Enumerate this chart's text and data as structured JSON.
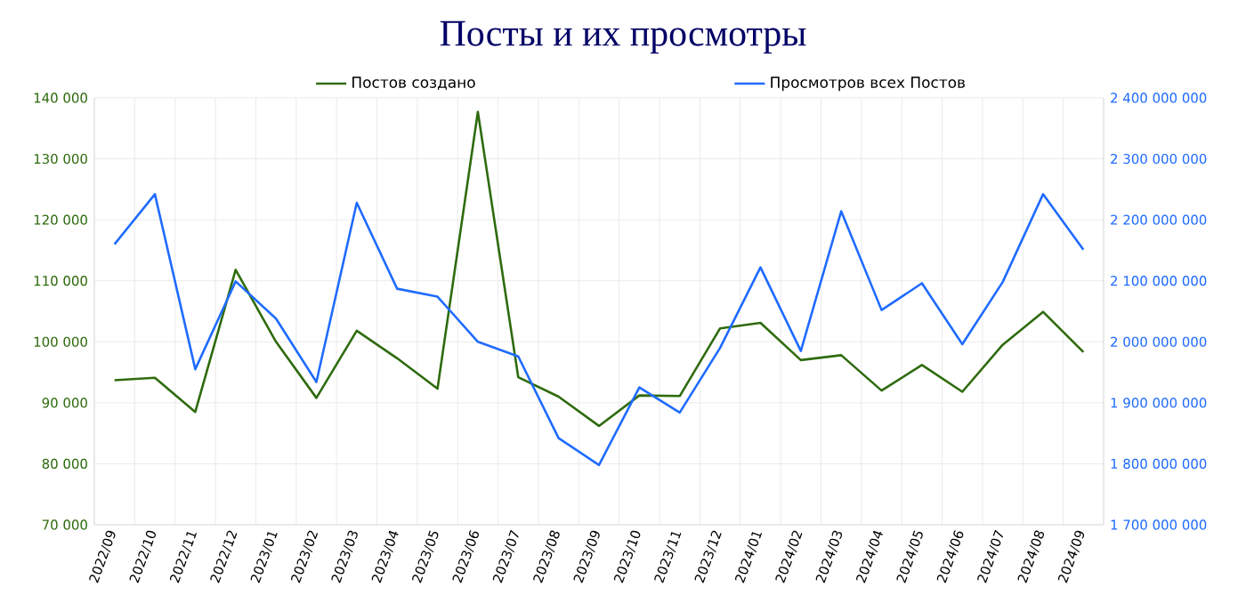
{
  "chart_data": {
    "type": "line",
    "title": "Посты и их просмотры",
    "categories": [
      "2022/09",
      "2022/10",
      "2022/11",
      "2022/12",
      "2023/01",
      "2023/02",
      "2023/03",
      "2023/04",
      "2023/05",
      "2023/06",
      "2023/07",
      "2023/08",
      "2023/09",
      "2023/10",
      "2023/11",
      "2023/12",
      "2024/01",
      "2024/02",
      "2024/03",
      "2024/04",
      "2024/05",
      "2024/06",
      "2024/07",
      "2024/08",
      "2024/09"
    ],
    "series": [
      {
        "name": "Постов создано",
        "color": "#2e6b0e",
        "values": [
          93700,
          94100,
          88500,
          111800,
          100000,
          90800,
          101800,
          97300,
          92300,
          137700,
          94200,
          91000,
          86200,
          91200,
          91100,
          102200,
          103100,
          97000,
          97800,
          92000,
          96200,
          91800,
          99500,
          104900,
          98300
        ]
      },
      {
        "name": "Просмотров всех Постов",
        "color": "#1f6bff",
        "axis": "y2",
        "values": [
          2160000000,
          2242000000,
          1955000000,
          2099000000,
          2038000000,
          1934000000,
          2228000000,
          2087000000,
          2074000000,
          2000000000,
          1976000000,
          1842000000,
          1798000000,
          1925000000,
          1884000000,
          1990000000,
          2122000000,
          1985000000,
          2214000000,
          2052000000,
          2096000000,
          1996000000,
          2098000000,
          2242000000,
          2151000000
        ]
      }
    ],
    "ylim": [
      70000,
      140000
    ],
    "yticks": [
      {
        "value": 70000,
        "label": "70 000"
      },
      {
        "value": 80000,
        "label": "80 000"
      },
      {
        "value": 90000,
        "label": "90 000"
      },
      {
        "value": 100000,
        "label": "100 000"
      },
      {
        "value": 110000,
        "label": "110 000"
      },
      {
        "value": 120000,
        "label": "120 000"
      },
      {
        "value": 130000,
        "label": "130 000"
      },
      {
        "value": 140000,
        "label": "140 000"
      }
    ],
    "y2lim": [
      1700000000,
      2400000000
    ],
    "y2ticks": [
      {
        "value": 1700000000,
        "label": "1 700 000 000"
      },
      {
        "value": 1800000000,
        "label": "1 800 000 000"
      },
      {
        "value": 1900000000,
        "label": "1 900 000 000"
      },
      {
        "value": 2000000000,
        "label": "2 000 000 000"
      },
      {
        "value": 2100000000,
        "label": "2 100 000 000"
      },
      {
        "value": 2200000000,
        "label": "2 200 000 000"
      },
      {
        "value": 2300000000,
        "label": "2 300 000 000"
      },
      {
        "value": 2400000000,
        "label": "2 400 000 000"
      }
    ],
    "grid": true,
    "legend": "top",
    "marker": "none",
    "line_style": "solid"
  }
}
